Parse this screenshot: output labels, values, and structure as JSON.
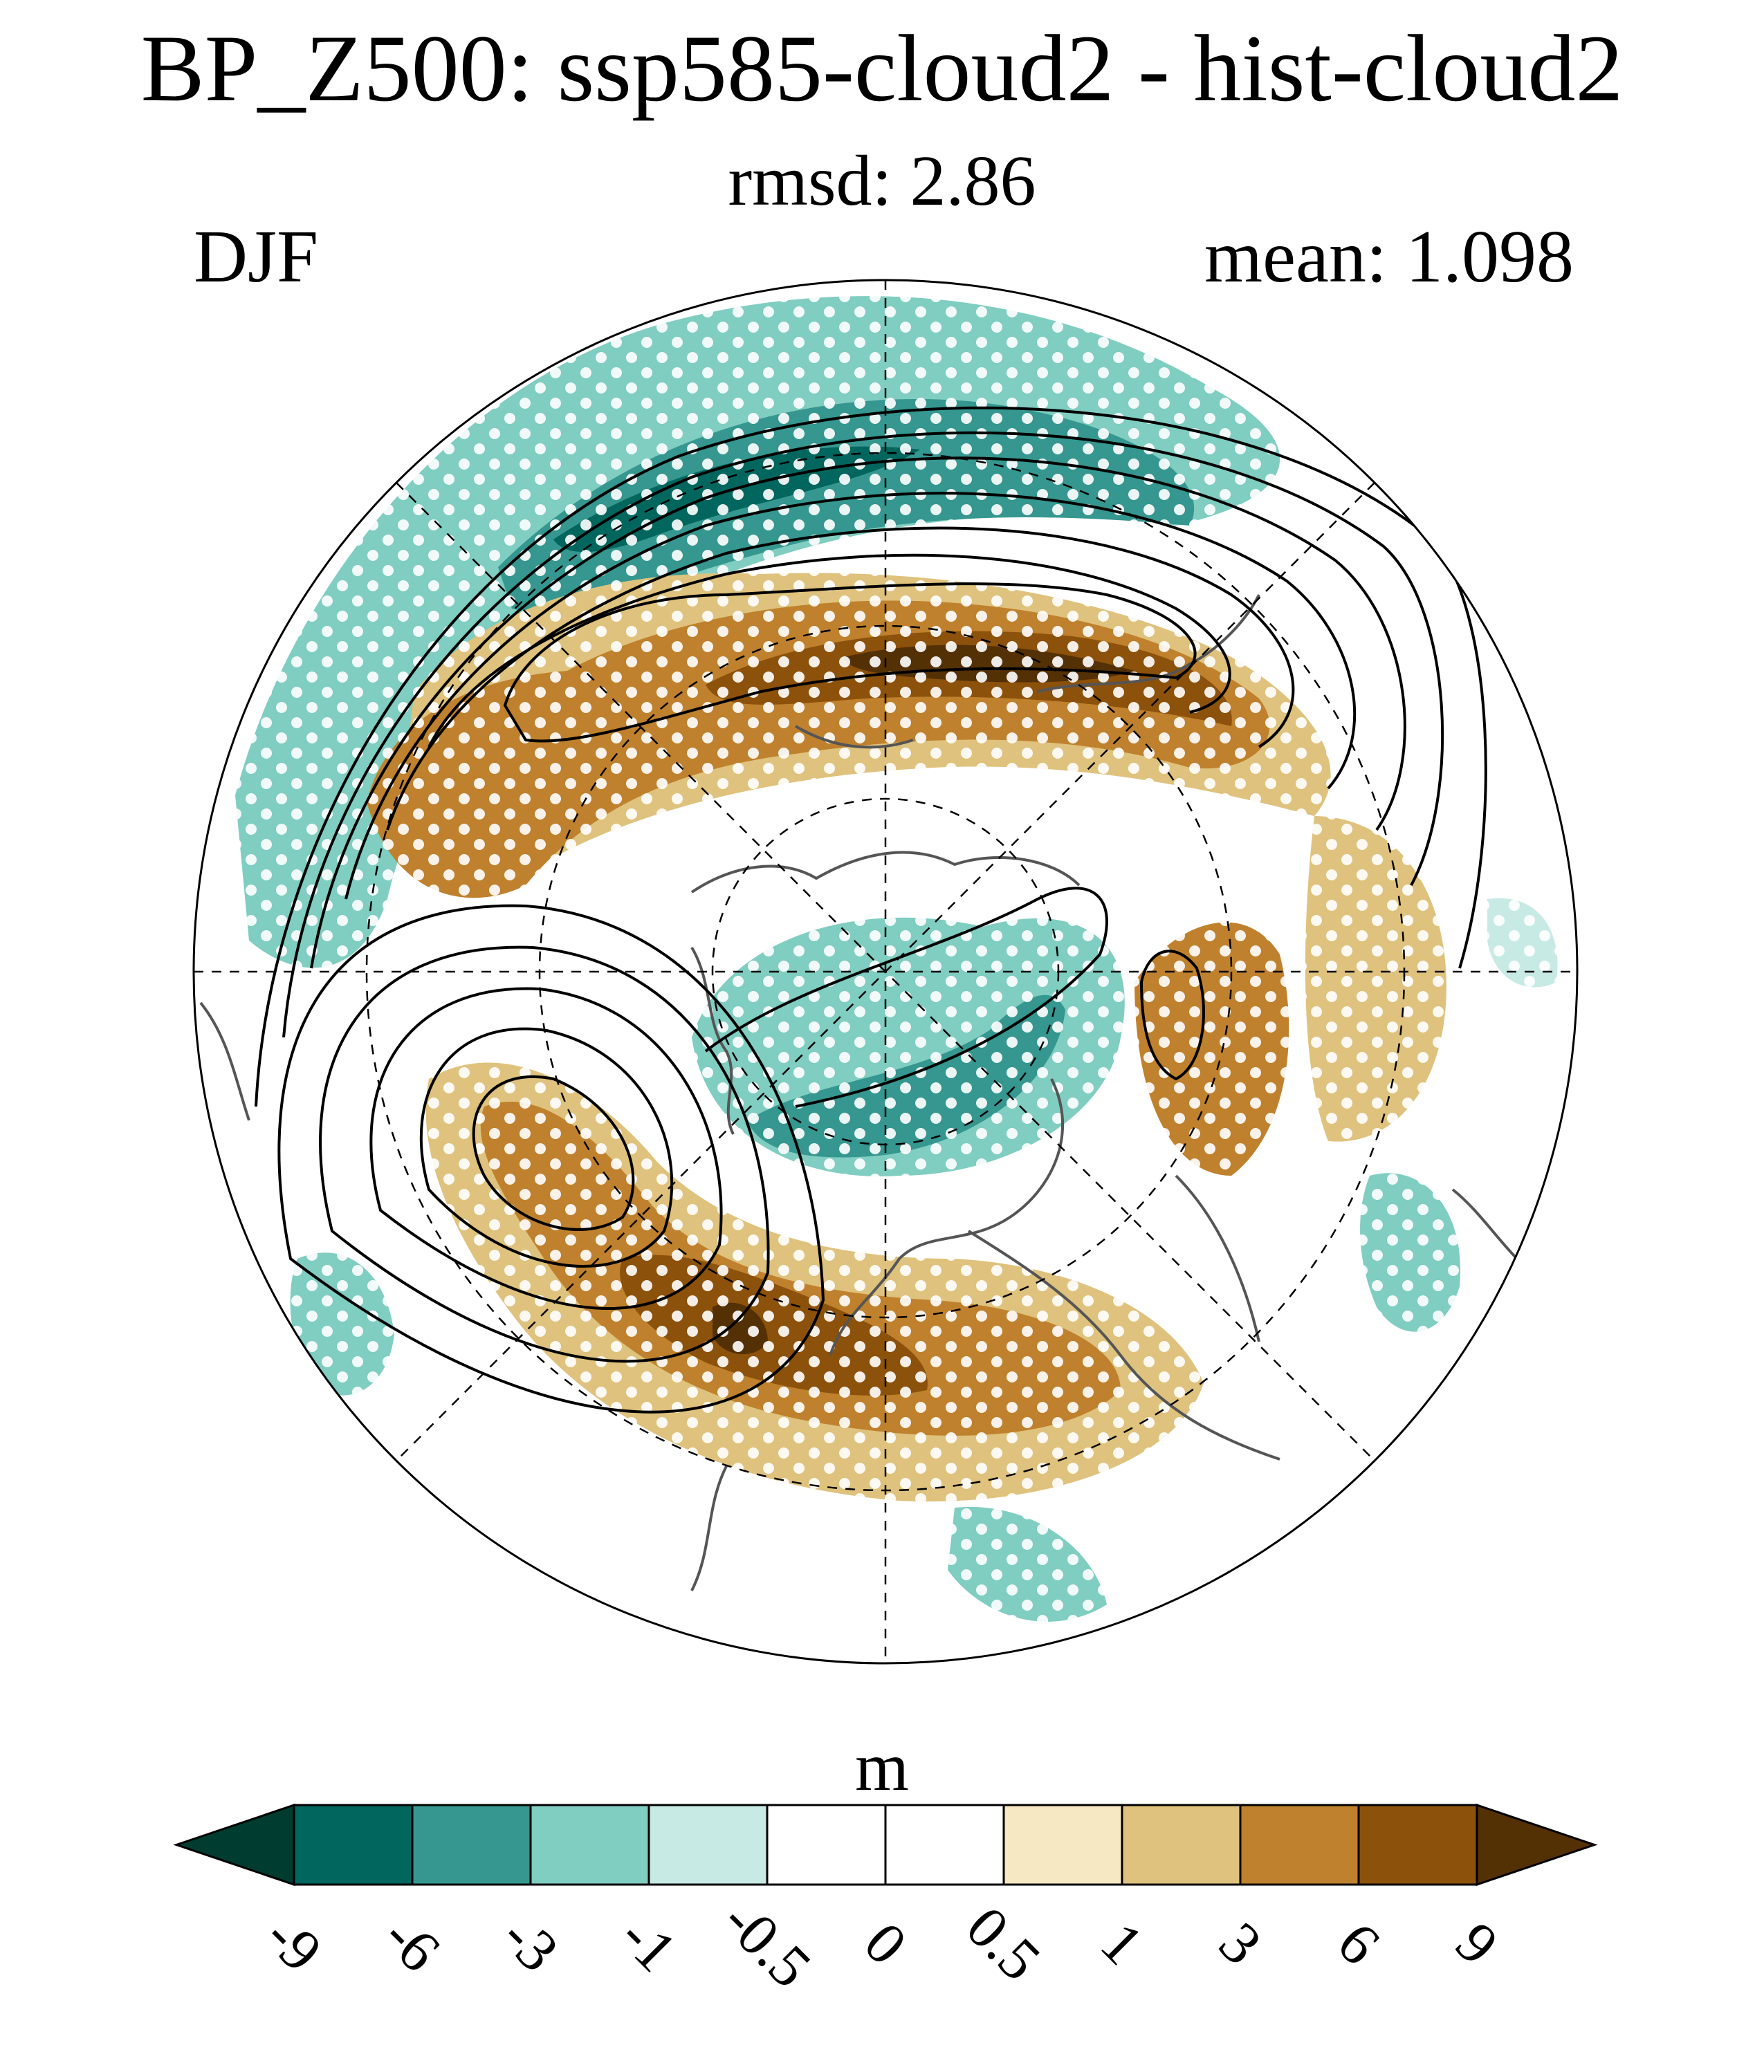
{
  "title": "BP_Z500: ssp585-cloud2 - hist-cloud2",
  "subtitle": "rmsd: 2.86",
  "season": "DJF",
  "mean_label": "mean: 1.098",
  "units": "m",
  "colorbar": {
    "levels": [
      "-9",
      "-6",
      "-3",
      "-1",
      "-0.5",
      "0",
      "0.5",
      "1",
      "3",
      "6",
      "9"
    ],
    "colors": [
      "#003c30",
      "#01665e",
      "#35978f",
      "#80cdc1",
      "#c7eae5",
      "#ffffff",
      "#ffffff",
      "#f6e8c3",
      "#dfc27d",
      "#bf812d",
      "#8c510a",
      "#543005"
    ]
  }
}
